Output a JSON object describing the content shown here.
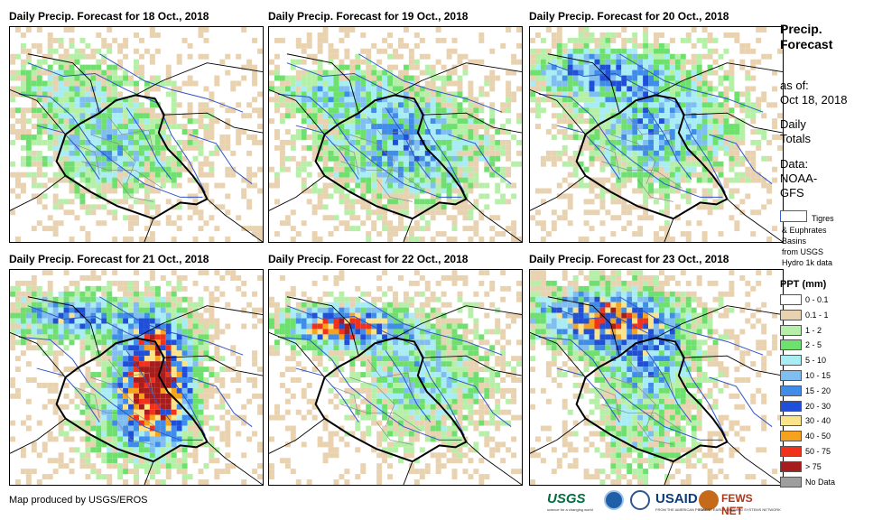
{
  "panels": [
    {
      "title": "Daily Precip. Forecast for 18 Oct., 2018",
      "seed": 18
    },
    {
      "title": "Daily Precip. Forecast for 19 Oct., 2018",
      "seed": 19
    },
    {
      "title": "Daily Precip. Forecast for 20 Oct., 2018",
      "seed": 20
    },
    {
      "title": "Daily Precip. Forecast for 21 Oct., 2018",
      "seed": 21
    },
    {
      "title": "Daily Precip. Forecast for 22 Oct., 2018",
      "seed": 22
    },
    {
      "title": "Daily Precip. Forecast for 23 Oct., 2018",
      "seed": 23
    }
  ],
  "legend": {
    "title_line1": "Precip.",
    "title_line2": "Forecast",
    "asof_label": "as of:",
    "asof_date": "Oct 18, 2018",
    "period_line1": "Daily",
    "period_line2": "Totals",
    "data_line1": "Data:",
    "data_line2": "NOAA-",
    "data_line3": "GFS",
    "basin_line1": "Tigres",
    "basin_line2": "& Euphrates",
    "basin_line3": "Basins",
    "basin_line4": "from USGS",
    "basin_line5": "Hydro 1k data",
    "ppt_title": "PPT (mm)",
    "classes": [
      {
        "label": "0 - 0.1",
        "color": "#ffffff"
      },
      {
        "label": "0.1 - 1",
        "color": "#e8d2b0"
      },
      {
        "label": "1 - 2",
        "color": "#b6f0a8"
      },
      {
        "label": "2 - 5",
        "color": "#6ee06e"
      },
      {
        "label": "5 - 10",
        "color": "#a8ecf4"
      },
      {
        "label": "10 - 15",
        "color": "#80bdf0"
      },
      {
        "label": "15 - 20",
        "color": "#3f8de8"
      },
      {
        "label": "20 - 30",
        "color": "#1f4fd8"
      },
      {
        "label": "30 - 40",
        "color": "#fbe38a"
      },
      {
        "label": "40 - 50",
        "color": "#f7a21c"
      },
      {
        "label": "50 - 75",
        "color": "#f2311b"
      },
      {
        "label": "> 75",
        "color": "#a51d1d"
      },
      {
        "label": "No Data",
        "color": "#9e9e9e"
      }
    ]
  },
  "footer": {
    "credit": "Map produced by USGS/EROS",
    "logo_usgs": "USGS",
    "logo_usgs_tag": "science for a changing world",
    "logo_usaid": "USAID",
    "logo_usaid_tag": "FROM THE AMERICAN PEOPLE",
    "logo_fews": "FEWS NET",
    "logo_fews_tag": "FAMINE EARLY WARNING SYSTEMS NETWORK"
  },
  "colors": {
    "country_border": "#000000",
    "basin_line": "#2f55c8",
    "admin_line": "#8a8a8a"
  }
}
